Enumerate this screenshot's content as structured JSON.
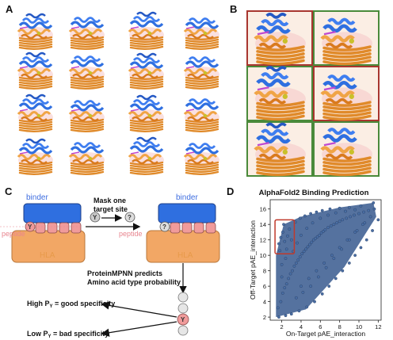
{
  "panels": {
    "a": {
      "letter": "A"
    },
    "b": {
      "letter": "B"
    },
    "c": {
      "letter": "C",
      "binder_label": "binder",
      "binder_label_right": "binder",
      "peptide_label": "peptide",
      "peptide_label_right": "peptide",
      "hla_label": "HLA",
      "hla_label_right": "HLA",
      "y_residue": "Y",
      "unknown_residue": "?",
      "step1_lines": [
        "Mask one",
        "target site"
      ],
      "step2_lines": [
        "ProteinMPNN predicts",
        "Amino acid type probability"
      ],
      "high_text": "High P",
      "high_sub": "Y",
      "high_rest": " = good specificity",
      "low_text": "Low P",
      "low_sub": "Y",
      "low_rest": " = bad specificity"
    },
    "d": {
      "letter": "D"
    }
  },
  "colors": {
    "binder": "#2f6fe0",
    "hla": "#f2a765",
    "peptide": "#f09b9b",
    "peptide_text": "#e8858f",
    "binder_text": "#3f6ee0",
    "hla_text": "#e79a4a",
    "scatter_point": "#4a6fa5",
    "highlight_box": "#c0392b",
    "good_border": "#4a8a3a",
    "bad_border": "#a8362f"
  },
  "chart_data": {
    "type": "scatter",
    "title": "AlphaFold2 Binding Prediction",
    "xlabel": "On-Target pAE_interaction",
    "ylabel": "Off-Target pAE_interaction",
    "xlim": [
      0.8,
      12.3
    ],
    "ylim": [
      1.6,
      17.2
    ],
    "xticks": [
      2,
      4,
      6,
      8,
      10,
      12
    ],
    "yticks": [
      2,
      4,
      6,
      8,
      10,
      12,
      14,
      16
    ],
    "highlight_region": {
      "x": [
        1.3,
        3.3
      ],
      "y": [
        10.2,
        14.6
      ]
    },
    "points": [
      [
        1.6,
        3.2
      ],
      [
        1.9,
        4.0
      ],
      [
        2.1,
        5.1
      ],
      [
        2.3,
        5.8
      ],
      [
        2.5,
        6.3
      ],
      [
        2.7,
        7.0
      ],
      [
        2.9,
        7.6
      ],
      [
        3.1,
        8.0
      ],
      [
        3.3,
        8.6
      ],
      [
        3.5,
        9.0
      ],
      [
        3.7,
        9.4
      ],
      [
        3.9,
        9.8
      ],
      [
        4.1,
        10.2
      ],
      [
        4.3,
        10.5
      ],
      [
        4.5,
        10.8
      ],
      [
        4.7,
        11.1
      ],
      [
        4.9,
        11.4
      ],
      [
        5.1,
        11.7
      ],
      [
        5.3,
        12.0
      ],
      [
        5.5,
        12.2
      ],
      [
        5.7,
        12.4
      ],
      [
        5.9,
        12.6
      ],
      [
        6.1,
        12.9
      ],
      [
        6.3,
        13.1
      ],
      [
        6.5,
        13.3
      ],
      [
        6.8,
        13.6
      ],
      [
        7.1,
        13.8
      ],
      [
        7.4,
        14.0
      ],
      [
        7.7,
        14.2
      ],
      [
        8.0,
        14.4
      ],
      [
        8.3,
        14.6
      ],
      [
        8.7,
        14.8
      ],
      [
        9.1,
        15.0
      ],
      [
        9.5,
        15.2
      ],
      [
        10.0,
        15.4
      ],
      [
        10.5,
        15.6
      ],
      [
        11.0,
        15.8
      ],
      [
        11.6,
        16.0
      ],
      [
        1.7,
        11.5
      ],
      [
        1.9,
        12.3
      ],
      [
        2.1,
        13.0
      ],
      [
        2.3,
        11.8
      ],
      [
        2.6,
        12.5
      ],
      [
        2.8,
        13.4
      ],
      [
        2.2,
        14.0
      ],
      [
        2.5,
        10.8
      ],
      [
        1.8,
        10.6
      ],
      [
        3.0,
        12.0
      ],
      [
        3.4,
        14.3
      ],
      [
        3.9,
        14.8
      ],
      [
        4.4,
        15.1
      ],
      [
        5.0,
        15.4
      ],
      [
        5.6,
        15.6
      ],
      [
        6.2,
        15.8
      ],
      [
        7.0,
        16.0
      ],
      [
        8.0,
        16.1
      ],
      [
        9.0,
        16.2
      ],
      [
        10.2,
        16.4
      ],
      [
        11.5,
        16.8
      ],
      [
        12.0,
        14.6
      ],
      [
        11.4,
        13.2
      ],
      [
        10.8,
        12.0
      ],
      [
        10.2,
        11.0
      ],
      [
        9.6,
        10.0
      ],
      [
        9.0,
        9.0
      ],
      [
        8.3,
        8.0
      ],
      [
        7.6,
        7.0
      ],
      [
        6.9,
        6.0
      ],
      [
        6.2,
        5.0
      ],
      [
        5.4,
        4.0
      ],
      [
        4.6,
        3.3
      ],
      [
        3.8,
        2.8
      ],
      [
        3.0,
        2.4
      ],
      [
        2.4,
        2.2
      ],
      [
        1.7,
        2.0
      ],
      [
        2.0,
        8.8
      ],
      [
        2.4,
        9.6
      ],
      [
        2.0,
        7.2
      ],
      [
        3.2,
        10.5
      ],
      [
        3.6,
        11.6
      ],
      [
        4.0,
        12.6
      ],
      [
        4.6,
        13.5
      ],
      [
        5.2,
        14.2
      ],
      [
        6.0,
        14.8
      ],
      [
        6.8,
        15.2
      ],
      [
        7.6,
        15.5
      ],
      [
        8.6,
        15.7
      ],
      [
        9.6,
        15.9
      ],
      [
        4.0,
        6.0
      ],
      [
        4.8,
        7.0
      ],
      [
        5.6,
        8.0
      ],
      [
        6.4,
        9.0
      ],
      [
        7.2,
        10.0
      ],
      [
        8.0,
        11.0
      ],
      [
        8.8,
        12.0
      ],
      [
        9.6,
        13.0
      ],
      [
        10.4,
        14.0
      ],
      [
        11.2,
        15.0
      ],
      [
        3.5,
        4.5
      ],
      [
        4.2,
        5.2
      ],
      [
        5.0,
        6.0
      ],
      [
        5.8,
        7.2
      ],
      [
        6.6,
        8.4
      ],
      [
        7.4,
        9.6
      ],
      [
        8.2,
        10.8
      ],
      [
        9.0,
        12.0
      ],
      [
        9.8,
        13.2
      ],
      [
        10.6,
        14.2
      ]
    ]
  }
}
